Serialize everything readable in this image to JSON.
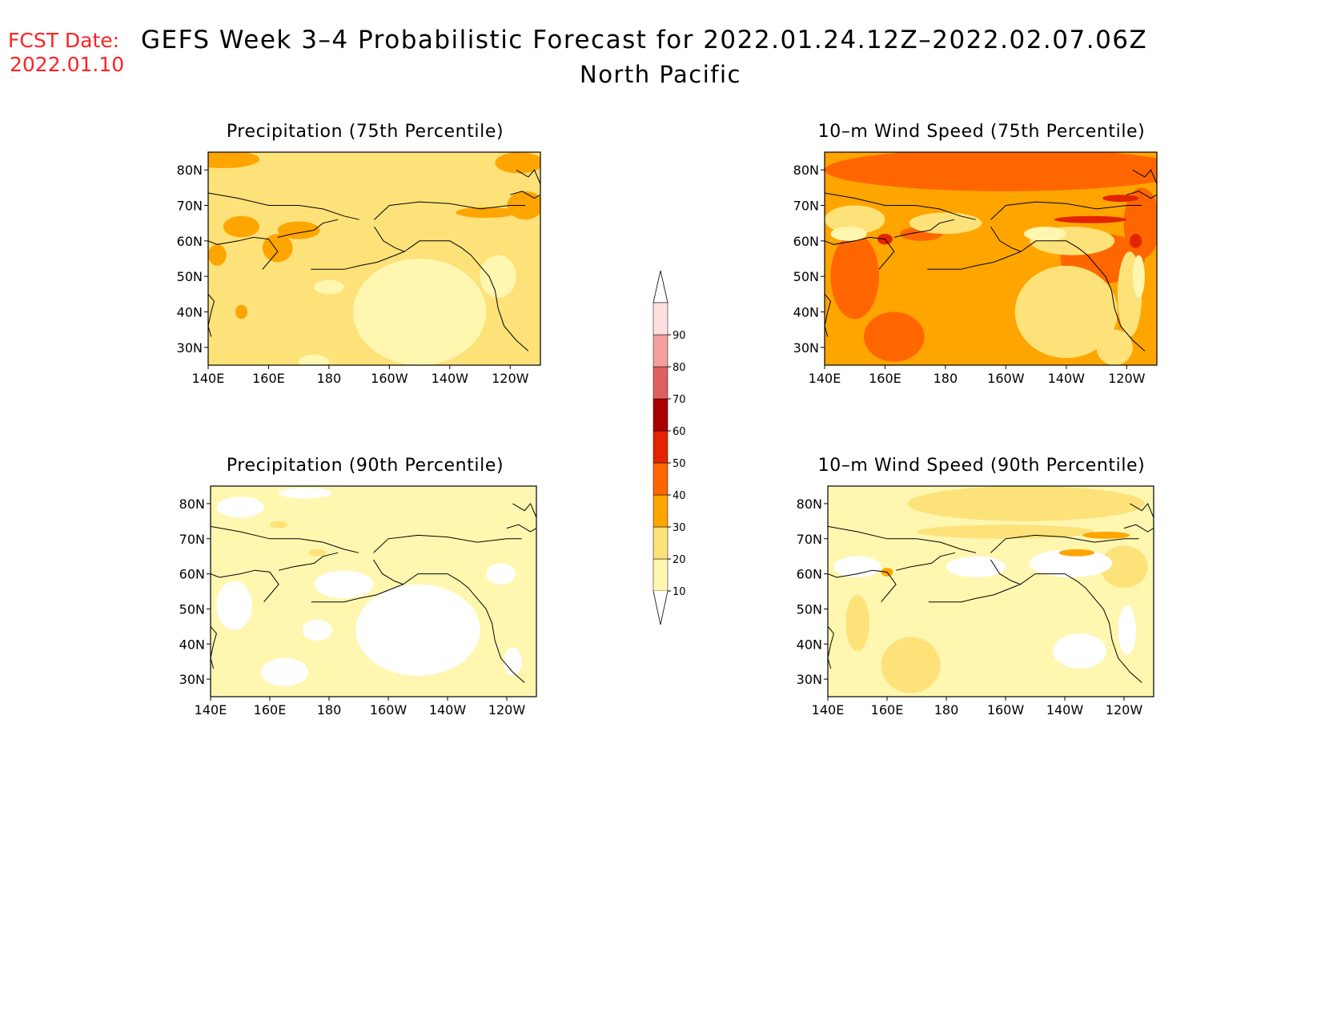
{
  "header": {
    "fcst_label": "FCST Date:",
    "fcst_date": "2022.01.10",
    "title": "GEFS Week 3–4 Probabilistic Forecast for 2022.01.24.12Z–2022.02.07.06Z",
    "subtitle": "North Pacific"
  },
  "map_extent": {
    "lon_min": 140,
    "lon_max": 250,
    "lat_min": 25,
    "lat_max": 85
  },
  "axes": {
    "x_ticks": [
      {
        "lon": 140,
        "label": "140E"
      },
      {
        "lon": 160,
        "label": "160E"
      },
      {
        "lon": 180,
        "label": "180"
      },
      {
        "lon": 200,
        "label": "160W"
      },
      {
        "lon": 220,
        "label": "140W"
      },
      {
        "lon": 240,
        "label": "120W"
      }
    ],
    "y_ticks": [
      {
        "lat": 30,
        "label": "30N"
      },
      {
        "lat": 40,
        "label": "40N"
      },
      {
        "lat": 50,
        "label": "50N"
      },
      {
        "lat": 60,
        "label": "60N"
      },
      {
        "lat": 70,
        "label": "70N"
      },
      {
        "lat": 80,
        "label": "80N"
      }
    ]
  },
  "colorbar": {
    "levels": [
      "10",
      "20",
      "30",
      "40",
      "50",
      "60",
      "70",
      "80",
      "90"
    ],
    "colors": [
      "#fff7b0",
      "#fde27a",
      "#ffa500",
      "#ff6600",
      "#e32400",
      "#a80000",
      "#e06060",
      "#f4a0a0",
      "#fde0e0"
    ]
  },
  "panels": [
    {
      "id": "precip-75",
      "title": "Precipitation (75th Percentile)",
      "background": 1,
      "patches": [
        {
          "value": 2,
          "lon": 145,
          "lat": 83,
          "rx": 12,
          "ry": 2.5
        },
        {
          "value": 2,
          "lon": 243,
          "lat": 82,
          "rx": 8,
          "ry": 3
        },
        {
          "value": 2,
          "lon": 245,
          "lat": 70,
          "rx": 6,
          "ry": 4
        },
        {
          "value": 2,
          "lon": 151,
          "lat": 64,
          "rx": 6,
          "ry": 3
        },
        {
          "value": 2,
          "lon": 170,
          "lat": 63,
          "rx": 7,
          "ry": 2.5
        },
        {
          "value": 2,
          "lon": 163,
          "lat": 58,
          "rx": 5,
          "ry": 4
        },
        {
          "value": 2,
          "lon": 232,
          "lat": 68,
          "rx": 10,
          "ry": 1.5
        },
        {
          "value": 2,
          "lon": 151,
          "lat": 40,
          "rx": 2,
          "ry": 2
        },
        {
          "value": 2,
          "lon": 143,
          "lat": 56,
          "rx": 3,
          "ry": 3
        },
        {
          "value": 0,
          "lon": 210,
          "lat": 40,
          "rx": 22,
          "ry": 15
        },
        {
          "value": 0,
          "lon": 236,
          "lat": 50,
          "rx": 6,
          "ry": 6
        },
        {
          "value": 0,
          "lon": 180,
          "lat": 47,
          "rx": 5,
          "ry": 2
        },
        {
          "value": 0,
          "lon": 175,
          "lat": 26,
          "rx": 5,
          "ry": 2
        }
      ]
    },
    {
      "id": "wind-75",
      "title": "10–m Wind Speed (75th Percentile)",
      "background": 2,
      "patches": [
        {
          "value": 3,
          "lon": 200,
          "lat": 80,
          "rx": 60,
          "ry": 6
        },
        {
          "value": 3,
          "lon": 150,
          "lat": 50,
          "rx": 8,
          "ry": 12
        },
        {
          "value": 3,
          "lon": 163,
          "lat": 33,
          "rx": 10,
          "ry": 7
        },
        {
          "value": 3,
          "lon": 172,
          "lat": 62,
          "rx": 7,
          "ry": 2
        },
        {
          "value": 3,
          "lon": 232,
          "lat": 55,
          "rx": 14,
          "ry": 7
        },
        {
          "value": 3,
          "lon": 245,
          "lat": 65,
          "rx": 6,
          "ry": 10
        },
        {
          "value": 1,
          "lon": 150,
          "lat": 66,
          "rx": 10,
          "ry": 4
        },
        {
          "value": 1,
          "lon": 180,
          "lat": 65,
          "rx": 12,
          "ry": 3
        },
        {
          "value": 1,
          "lon": 222,
          "lat": 60,
          "rx": 14,
          "ry": 4
        },
        {
          "value": 1,
          "lon": 220,
          "lat": 40,
          "rx": 17,
          "ry": 13
        },
        {
          "value": 1,
          "lon": 241,
          "lat": 45,
          "rx": 4,
          "ry": 12
        },
        {
          "value": 1,
          "lon": 236,
          "lat": 30,
          "rx": 6,
          "ry": 5
        },
        {
          "value": 0,
          "lon": 148,
          "lat": 62,
          "rx": 6,
          "ry": 2
        },
        {
          "value": 0,
          "lon": 213,
          "lat": 62,
          "rx": 7,
          "ry": 2
        },
        {
          "value": 0,
          "lon": 244,
          "lat": 50,
          "rx": 2,
          "ry": 6
        },
        {
          "value": 4,
          "lon": 160,
          "lat": 60.5,
          "rx": 2.5,
          "ry": 1.5
        },
        {
          "value": 4,
          "lon": 228,
          "lat": 66,
          "rx": 12,
          "ry": 1
        },
        {
          "value": 4,
          "lon": 238,
          "lat": 72,
          "rx": 6,
          "ry": 1
        },
        {
          "value": 4,
          "lon": 243,
          "lat": 60,
          "rx": 2,
          "ry": 2
        }
      ]
    },
    {
      "id": "precip-90",
      "title": "Precipitation (90th Percentile)",
      "background": 0,
      "patches": [
        {
          "value": -1,
          "lon": 150,
          "lat": 79,
          "rx": 8,
          "ry": 3
        },
        {
          "value": -1,
          "lon": 172,
          "lat": 83,
          "rx": 9,
          "ry": 1.5
        },
        {
          "value": -1,
          "lon": 210,
          "lat": 44,
          "rx": 21,
          "ry": 13
        },
        {
          "value": -1,
          "lon": 185,
          "lat": 57,
          "rx": 10,
          "ry": 4
        },
        {
          "value": -1,
          "lon": 148,
          "lat": 51,
          "rx": 6,
          "ry": 7
        },
        {
          "value": -1,
          "lon": 176,
          "lat": 44,
          "rx": 5,
          "ry": 3
        },
        {
          "value": -1,
          "lon": 165,
          "lat": 32,
          "rx": 8,
          "ry": 4
        },
        {
          "value": -1,
          "lon": 242,
          "lat": 35,
          "rx": 3,
          "ry": 4
        },
        {
          "value": -1,
          "lon": 238,
          "lat": 60,
          "rx": 5,
          "ry": 3
        },
        {
          "value": 1,
          "lon": 163,
          "lat": 74,
          "rx": 3,
          "ry": 1
        },
        {
          "value": 1,
          "lon": 176,
          "lat": 66,
          "rx": 3,
          "ry": 1
        }
      ]
    },
    {
      "id": "wind-90",
      "title": "10–m Wind Speed (90th Percentile)",
      "background": 0,
      "patches": [
        {
          "value": 1,
          "lon": 207,
          "lat": 80,
          "rx": 40,
          "ry": 5
        },
        {
          "value": 1,
          "lon": 168,
          "lat": 34,
          "rx": 10,
          "ry": 8
        },
        {
          "value": 1,
          "lon": 150,
          "lat": 46,
          "rx": 4,
          "ry": 8
        },
        {
          "value": 1,
          "lon": 240,
          "lat": 62,
          "rx": 8,
          "ry": 6
        },
        {
          "value": 1,
          "lon": 200,
          "lat": 72,
          "rx": 30,
          "ry": 2
        },
        {
          "value": -1,
          "lon": 150,
          "lat": 62,
          "rx": 8,
          "ry": 3
        },
        {
          "value": -1,
          "lon": 190,
          "lat": 62,
          "rx": 10,
          "ry": 3
        },
        {
          "value": -1,
          "lon": 222,
          "lat": 63,
          "rx": 14,
          "ry": 4
        },
        {
          "value": -1,
          "lon": 225,
          "lat": 38,
          "rx": 9,
          "ry": 5
        },
        {
          "value": -1,
          "lon": 241,
          "lat": 44,
          "rx": 3,
          "ry": 7
        },
        {
          "value": 2,
          "lon": 160,
          "lat": 60.5,
          "rx": 2,
          "ry": 1.2
        },
        {
          "value": 2,
          "lon": 234,
          "lat": 71,
          "rx": 8,
          "ry": 1
        },
        {
          "value": 2,
          "lon": 224,
          "lat": 66,
          "rx": 6,
          "ry": 1
        }
      ]
    }
  ]
}
